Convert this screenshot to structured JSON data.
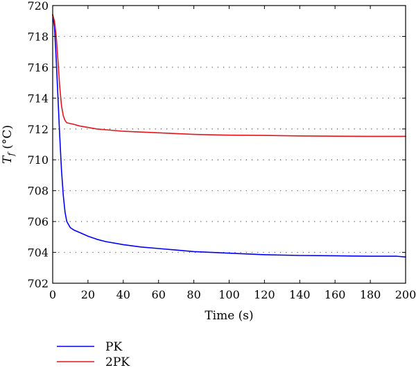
{
  "chart_data": {
    "type": "line",
    "title": "",
    "xlabel": "Time (s)",
    "ylabel": {
      "base": "T",
      "subscript": "f",
      "unit": " (°C)"
    },
    "xlim": [
      0,
      200
    ],
    "ylim": [
      702,
      720
    ],
    "xticks": [
      0,
      20,
      40,
      60,
      80,
      100,
      120,
      140,
      160,
      180,
      200
    ],
    "yticks": [
      702,
      704,
      706,
      708,
      710,
      712,
      714,
      716,
      718,
      720
    ],
    "grid": "horizontal dotted",
    "legend_position": "bottom-left, below plot",
    "series": [
      {
        "name": "PK",
        "color": "#0000ff",
        "x": [
          0,
          1,
          2,
          3,
          4,
          5,
          6,
          7,
          8,
          10,
          12,
          15,
          20,
          25,
          30,
          40,
          50,
          60,
          70,
          80,
          90,
          100,
          120,
          140,
          160,
          180,
          195,
          200
        ],
        "y": [
          719.4,
          718.6,
          716.5,
          714.0,
          711.5,
          709.3,
          707.7,
          706.6,
          706.0,
          705.6,
          705.45,
          705.3,
          705.05,
          704.85,
          704.7,
          704.5,
          704.35,
          704.25,
          704.15,
          704.05,
          704.0,
          703.95,
          703.85,
          703.8,
          703.78,
          703.75,
          703.75,
          703.7
        ]
      },
      {
        "name": "2PK",
        "color": "#e8141c",
        "x": [
          0,
          1,
          2,
          3,
          4,
          5,
          6,
          7,
          8,
          10,
          12,
          15,
          20,
          25,
          30,
          40,
          50,
          60,
          70,
          80,
          90,
          100,
          120,
          140,
          160,
          180,
          195,
          200
        ],
        "y": [
          719.4,
          719.0,
          718.0,
          716.4,
          714.7,
          713.5,
          712.85,
          712.55,
          712.4,
          712.35,
          712.3,
          712.2,
          712.1,
          712.0,
          711.95,
          711.85,
          711.8,
          711.75,
          711.7,
          711.65,
          711.62,
          711.6,
          711.58,
          711.55,
          711.53,
          711.52,
          711.52,
          711.52
        ]
      }
    ]
  }
}
